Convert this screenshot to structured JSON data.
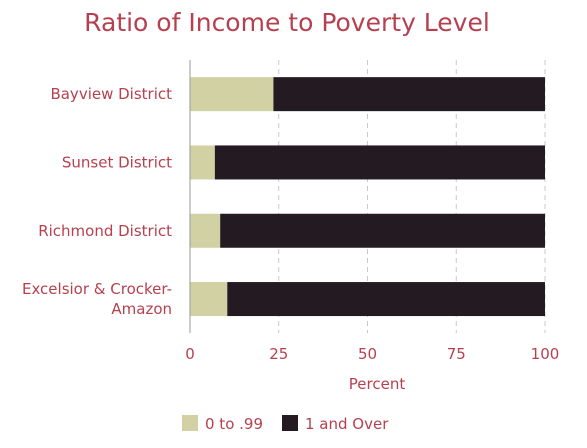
{
  "chart_data": {
    "type": "bar",
    "orientation": "horizontal",
    "stacked": true,
    "title": "Ratio of Income to Poverty Level",
    "xlabel": "Percent",
    "ylabel": "",
    "xlim": [
      0,
      100
    ],
    "xticks": [
      0,
      25,
      50,
      75,
      100
    ],
    "grid": true,
    "legend_position": "bottom",
    "categories": [
      "Bayview District",
      "Sunset District",
      "Richmond District",
      "Excelsior & Crocker-Amazon"
    ],
    "category_lines": [
      [
        "Bayview District"
      ],
      [
        "Sunset District"
      ],
      [
        "Richmond District"
      ],
      [
        "Excelsior & Crocker-",
        "Amazon"
      ]
    ],
    "series": [
      {
        "name": "0 to .99",
        "color": "#d1d1a3",
        "values": [
          23.5,
          7,
          8.5,
          10.5
        ]
      },
      {
        "name": "1 and Over",
        "color": "#231a22",
        "values": [
          76.5,
          93,
          91.5,
          89.5
        ]
      }
    ],
    "colors": {
      "text": "#b6404f",
      "grid": "#c9c9c9",
      "axis": "#999999"
    }
  }
}
